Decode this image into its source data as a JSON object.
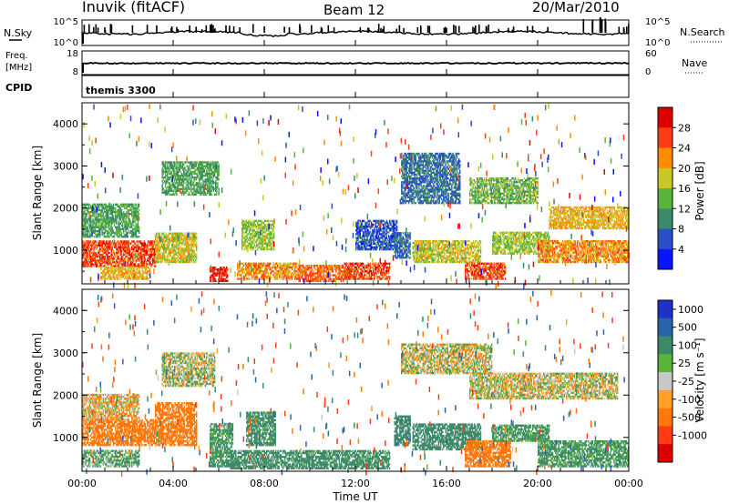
{
  "header": {
    "station": "Inuvik (fitACF)",
    "beam": "Beam 12",
    "date": "20/Mar/2010"
  },
  "top_panels": {
    "nsky": {
      "left_label": "N.Sky",
      "left_ticks": [
        "10^5",
        "10^0"
      ],
      "right_ticks": [
        "10^5",
        "10^0"
      ],
      "right_label": "N.Search"
    },
    "freq": {
      "left_label_line1": "Freq.",
      "left_label_line2": "[MHz]",
      "left_ticks": [
        "18",
        "8"
      ],
      "right_ticks": [
        "60",
        "0"
      ],
      "right_label": "Nave"
    },
    "cpid": {
      "label": "CPID",
      "value": "themis 3300"
    }
  },
  "axes": {
    "x_ticks": [
      "00:00",
      "04:00",
      "08:00",
      "12:00",
      "16:00",
      "20:00",
      "00:00"
    ],
    "x_title": "Time UT",
    "y_ticks": [
      "1000",
      "2000",
      "3000",
      "4000"
    ],
    "y_title": "Slant Range [km]"
  },
  "power_colorbar": {
    "title": "Power [dB]",
    "labels": [
      "4",
      "8",
      "12",
      "16",
      "20",
      "24",
      "28"
    ],
    "colors": [
      "#0a14ff",
      "#2a50c8",
      "#3c8a6a",
      "#5ab43c",
      "#c8c828",
      "#ff8c00",
      "#ff3c14",
      "#dc0000"
    ]
  },
  "velocity_colorbar": {
    "title": "Velocity [m s⁻¹]",
    "labels": [
      "1000",
      "500",
      "100",
      "25",
      "-25",
      "-100",
      "-500",
      "-1000"
    ],
    "colors": [
      "#1e32c8",
      "#2a64a8",
      "#3c8a6a",
      "#5ab43c",
      "#c8c8c8",
      "#ffa028",
      "#ff780a",
      "#ff3c14",
      "#dc0000"
    ]
  },
  "chart_data": [
    {
      "type": "heatmap",
      "quantity": "Power",
      "x_unit": "hours UT",
      "xlim": [
        0,
        24
      ],
      "ylim": [
        200,
        4500
      ],
      "zlim": [
        0,
        30
      ],
      "regions": [
        {
          "t": [
            0.0,
            3.2
          ],
          "r": [
            600,
            1200
          ],
          "z": 26
        },
        {
          "t": [
            3.2,
            5.0
          ],
          "r": [
            700,
            1400
          ],
          "z": 18
        },
        {
          "t": [
            0.0,
            2.5
          ],
          "r": [
            1300,
            2100
          ],
          "z": 12
        },
        {
          "t": [
            0.8,
            3.0
          ],
          "r": [
            300,
            600
          ],
          "z": 20
        },
        {
          "t": [
            5.6,
            6.4
          ],
          "r": [
            250,
            600
          ],
          "z": 28
        },
        {
          "t": [
            6.8,
            9.5
          ],
          "r": [
            300,
            700
          ],
          "z": 22
        },
        {
          "t": [
            7.0,
            8.4
          ],
          "r": [
            1000,
            1700
          ],
          "z": 16
        },
        {
          "t": [
            9.5,
            11.5
          ],
          "r": [
            250,
            650
          ],
          "z": 24
        },
        {
          "t": [
            11.5,
            13.5
          ],
          "r": [
            300,
            700
          ],
          "z": 26
        },
        {
          "t": [
            12.0,
            13.8
          ],
          "r": [
            1000,
            1700
          ],
          "z": 6
        },
        {
          "t": [
            13.7,
            14.4
          ],
          "r": [
            800,
            1400
          ],
          "z": 8
        },
        {
          "t": [
            14.5,
            17.5
          ],
          "r": [
            700,
            1200
          ],
          "z": 18
        },
        {
          "t": [
            14.0,
            16.6
          ],
          "r": [
            2100,
            3300
          ],
          "z": 8
        },
        {
          "t": [
            16.8,
            18.6
          ],
          "r": [
            300,
            700
          ],
          "z": 26
        },
        {
          "t": [
            18.0,
            20.5
          ],
          "r": [
            900,
            1400
          ],
          "z": 16
        },
        {
          "t": [
            17.0,
            20.0
          ],
          "r": [
            2100,
            2700
          ],
          "z": 14
        },
        {
          "t": [
            20.5,
            24.0
          ],
          "r": [
            1500,
            2000
          ],
          "z": 20
        },
        {
          "t": [
            20.0,
            24.0
          ],
          "r": [
            700,
            1200
          ],
          "z": 22
        },
        {
          "t": [
            3.5,
            6.0
          ],
          "r": [
            2300,
            3100
          ],
          "z": 12
        }
      ]
    },
    {
      "type": "heatmap",
      "quantity": "Velocity",
      "x_unit": "hours UT",
      "xlim": [
        0,
        24
      ],
      "ylim": [
        200,
        4500
      ],
      "zlim": [
        -1000,
        1000
      ],
      "regions": [
        {
          "t": [
            0.0,
            3.2
          ],
          "r": [
            800,
            1400
          ],
          "z": -250
        },
        {
          "t": [
            3.2,
            5.0
          ],
          "r": [
            800,
            1800
          ],
          "z": -300
        },
        {
          "t": [
            0.0,
            2.5
          ],
          "r": [
            300,
            700
          ],
          "z": 100
        },
        {
          "t": [
            0.0,
            2.5
          ],
          "r": [
            1400,
            2000
          ],
          "z": -50
        },
        {
          "t": [
            5.6,
            6.6
          ],
          "r": [
            300,
            1300
          ],
          "z": 150
        },
        {
          "t": [
            7.2,
            8.5
          ],
          "r": [
            800,
            1600
          ],
          "z": 200
        },
        {
          "t": [
            6.5,
            13.5
          ],
          "r": [
            250,
            700
          ],
          "z": 200
        },
        {
          "t": [
            13.7,
            14.4
          ],
          "r": [
            800,
            1500
          ],
          "z": 400
        },
        {
          "t": [
            14.5,
            17.5
          ],
          "r": [
            700,
            1300
          ],
          "z": 300
        },
        {
          "t": [
            14.0,
            18.0
          ],
          "r": [
            2500,
            3200
          ],
          "z": 0
        },
        {
          "t": [
            16.8,
            18.8
          ],
          "r": [
            300,
            900
          ],
          "z": -300
        },
        {
          "t": [
            18.0,
            20.5
          ],
          "r": [
            900,
            1300
          ],
          "z": 150
        },
        {
          "t": [
            17.0,
            23.5
          ],
          "r": [
            1900,
            2500
          ],
          "z": 0
        },
        {
          "t": [
            20.0,
            24.0
          ],
          "r": [
            300,
            900
          ],
          "z": 150
        },
        {
          "t": [
            3.5,
            5.8
          ],
          "r": [
            2200,
            3000
          ],
          "z": 20
        }
      ]
    }
  ]
}
